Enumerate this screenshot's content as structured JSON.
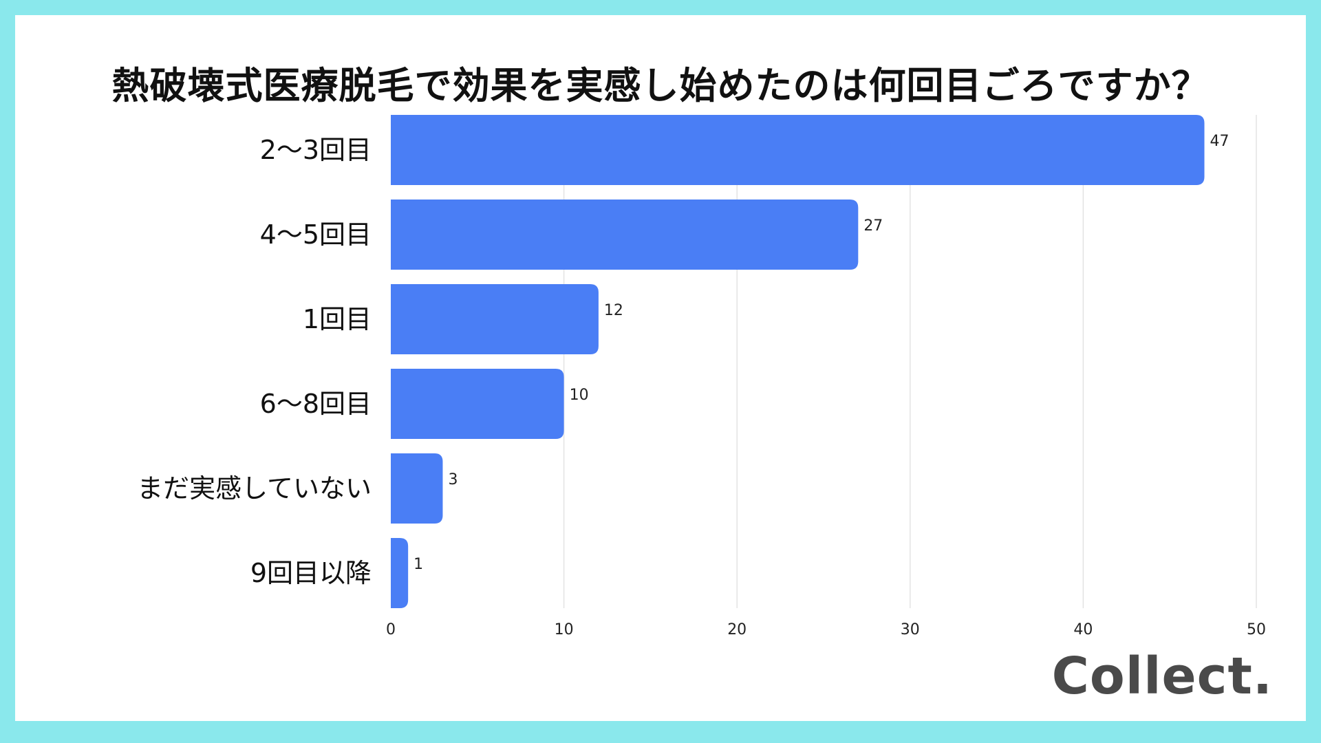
{
  "brand": "Collect.",
  "colors": {
    "bar": "#4a7ef5",
    "grid": "#e3e3e3",
    "frame": "#8ae8ec"
  },
  "chart_data": {
    "type": "bar",
    "orientation": "horizontal",
    "title": "熱破壊式医療脱毛で効果を実感し始めたのは何回目ごろですか？",
    "categories": [
      "2〜3回目",
      "4〜5回目",
      "1回目",
      "6〜8回目",
      "まだ実感していない",
      "9回目以降"
    ],
    "values": [
      47,
      27,
      12,
      10,
      3,
      1
    ],
    "xlim": [
      0,
      50
    ],
    "xticks": [
      0,
      10,
      20,
      30,
      40,
      50
    ],
    "grid": true,
    "xlabel": "",
    "ylabel": ""
  }
}
